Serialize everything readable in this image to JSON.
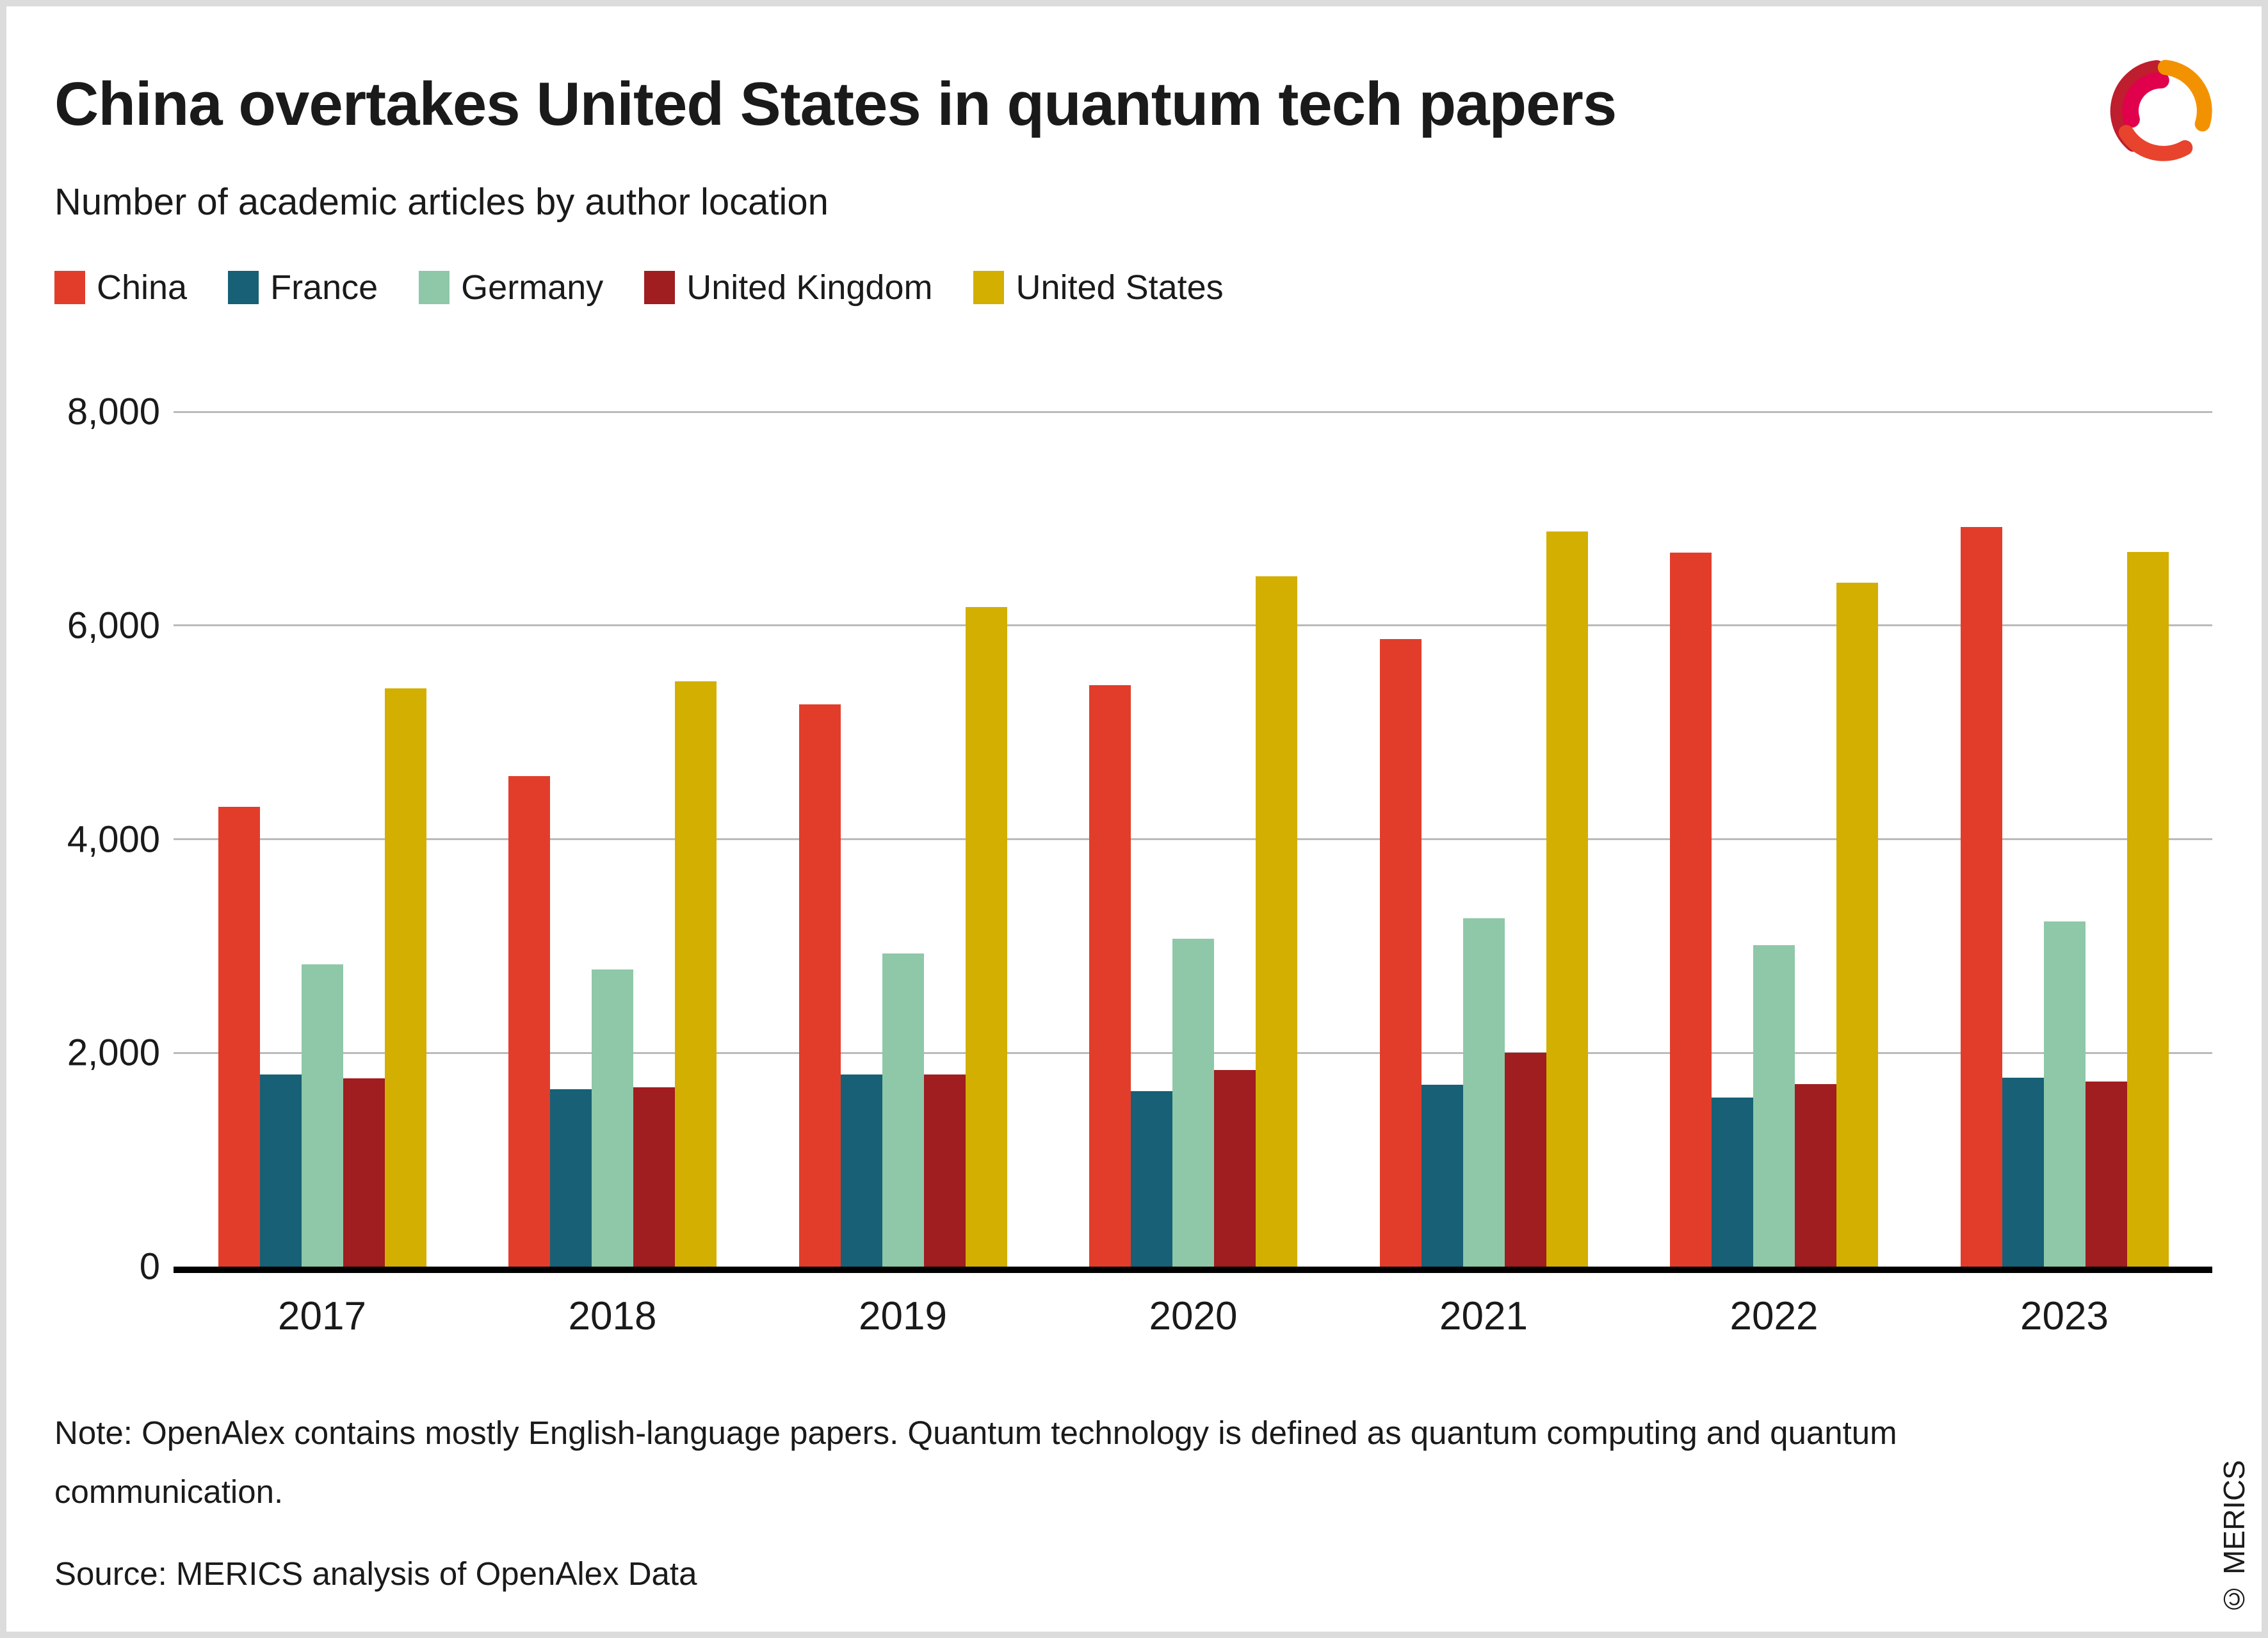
{
  "header": {
    "title": "China overtakes United States in quantum tech papers",
    "subtitle": "Number of academic articles by author location"
  },
  "brand": {
    "logo_name": "merics-logo",
    "logo_colors": {
      "dark_red": "#be1e2d",
      "magenta": "#e0004b",
      "orange": "#f39200",
      "red_orange": "#e8432d"
    }
  },
  "legend": [
    {
      "label": "China",
      "color": "#e23d2b"
    },
    {
      "label": "France",
      "color": "#176076"
    },
    {
      "label": "Germany",
      "color": "#8ec8a8"
    },
    {
      "label": "United Kingdom",
      "color": "#a01d20"
    },
    {
      "label": "United States",
      "color": "#d2af00"
    }
  ],
  "chart_data": {
    "type": "bar",
    "title": "China overtakes United States in quantum tech papers",
    "subtitle": "Number of academic articles by author location",
    "categories": [
      "2017",
      "2018",
      "2019",
      "2020",
      "2021",
      "2022",
      "2023"
    ],
    "series": [
      {
        "name": "China",
        "color": "#e23d2b",
        "values": [
          4300,
          4590,
          5260,
          5440,
          5870,
          6680,
          6920
        ]
      },
      {
        "name": "France",
        "color": "#176076",
        "values": [
          1800,
          1660,
          1800,
          1640,
          1700,
          1580,
          1770
        ]
      },
      {
        "name": "Germany",
        "color": "#8ec8a8",
        "values": [
          2830,
          2780,
          2930,
          3070,
          3260,
          3010,
          3230
        ]
      },
      {
        "name": "United Kingdom",
        "color": "#a01d20",
        "values": [
          1760,
          1680,
          1800,
          1840,
          2000,
          1710,
          1730
        ]
      },
      {
        "name": "United States",
        "color": "#d2af00",
        "values": [
          5410,
          5480,
          6170,
          6460,
          6880,
          6400,
          6690
        ]
      }
    ],
    "xlabel": "",
    "ylabel": "",
    "ylim": [
      0,
      8000
    ],
    "yticks": [
      {
        "label": "0",
        "value": 0
      },
      {
        "label": "2,000",
        "value": 2000
      },
      {
        "label": "4,000",
        "value": 4000
      },
      {
        "label": "6,000",
        "value": 6000
      },
      {
        "label": "8,000",
        "value": 8000
      }
    ],
    "grid": true,
    "legend_position": "top"
  },
  "footer": {
    "note": "Note: OpenAlex contains mostly English-language papers. Quantum technology is defined as quantum computing and quantum communication.",
    "source": "Source: MERICS analysis of OpenAlex Data",
    "copyright": "© MERICS"
  }
}
